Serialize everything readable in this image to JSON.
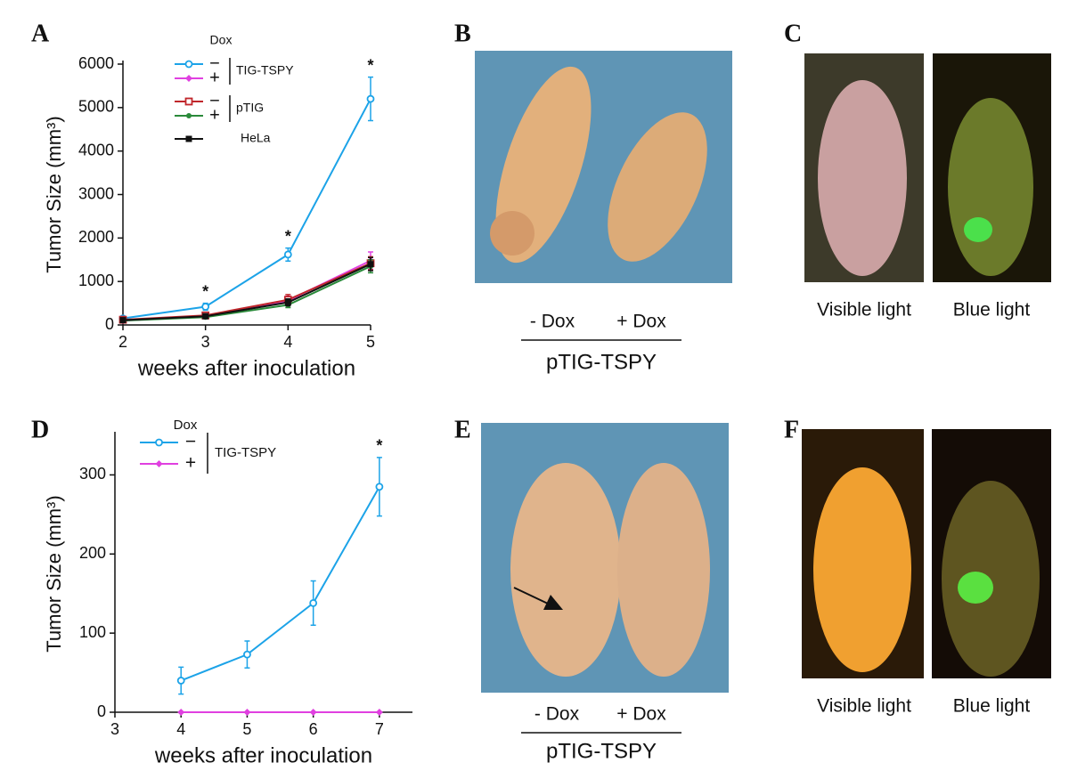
{
  "chart_data": [
    {
      "type": "line",
      "panel": "A",
      "xlabel": "weeks after inoculation",
      "ylabel": "Tumor Size (mm³)",
      "x": [
        2,
        3,
        4,
        5
      ],
      "xlim": [
        2,
        5
      ],
      "xticks": [
        2,
        3,
        4,
        5
      ],
      "ylim": [
        0,
        6000
      ],
      "yticks": [
        0,
        1000,
        2000,
        3000,
        4000,
        5000,
        6000
      ],
      "series": [
        {
          "name": "−",
          "color": "#1ca3e8",
          "marker": "circle-open",
          "values": [
            150,
            420,
            1620,
            5200
          ],
          "errors": [
            30,
            80,
            150,
            500
          ],
          "significance": [
            null,
            "*",
            "*",
            "*"
          ]
        },
        {
          "name": "+",
          "color": "#e040e0",
          "marker": "diamond",
          "values": [
            100,
            200,
            560,
            1480
          ],
          "errors": [
            20,
            40,
            100,
            200
          ]
        },
        {
          "name": "−",
          "color": "#c0262b",
          "marker": "square-open",
          "values": [
            120,
            220,
            580,
            1420
          ],
          "errors": [
            20,
            40,
            120,
            150
          ]
        },
        {
          "name": "+",
          "color": "#2a8a3a",
          "marker": "circle",
          "values": [
            100,
            180,
            460,
            1350
          ],
          "errors": [
            20,
            30,
            60,
            150
          ]
        },
        {
          "name": "HeLa",
          "color": "#111111",
          "marker": "square",
          "values": [
            110,
            200,
            520,
            1400
          ],
          "errors": [
            20,
            30,
            80,
            150
          ]
        }
      ],
      "legend": {
        "title": "Dox",
        "groups": [
          {
            "label": "TIG-TSPY",
            "series": [
              0,
              1
            ]
          },
          {
            "label": "pTIG",
            "series": [
              2,
              3
            ]
          },
          {
            "series": [
              4
            ]
          }
        ]
      }
    },
    {
      "type": "line",
      "panel": "D",
      "xlabel": "weeks after inoculation",
      "ylabel": "Tumor Size (mm³)",
      "x": [
        4,
        5,
        6,
        7
      ],
      "xlim": [
        3,
        7.5
      ],
      "xticks": [
        3,
        4,
        5,
        6,
        7
      ],
      "ylim": [
        0,
        350
      ],
      "yticks": [
        0,
        100,
        200,
        300
      ],
      "series": [
        {
          "name": "−",
          "color": "#1ca3e8",
          "marker": "circle-open",
          "values": [
            40,
            73,
            138,
            285
          ],
          "errors": [
            17,
            17,
            28,
            37
          ],
          "significance": [
            null,
            null,
            null,
            "*"
          ]
        },
        {
          "name": "+",
          "color": "#e040e0",
          "marker": "diamond",
          "values": [
            0,
            0,
            0,
            0
          ],
          "errors": [
            0,
            0,
            0,
            0
          ]
        }
      ],
      "legend": {
        "title": "Dox",
        "groups": [
          {
            "label": "TIG-TSPY",
            "series": [
              0,
              1
            ]
          }
        ]
      }
    }
  ],
  "photo_panels": [
    {
      "panel": "B",
      "captions": [
        "- Dox",
        "+ Dox"
      ],
      "group": "pTIG-TSPY"
    },
    {
      "panel": "C",
      "captions": [
        "Visible light",
        "Blue light"
      ]
    },
    {
      "panel": "E",
      "captions": [
        "- Dox",
        "+ Dox"
      ],
      "group": "pTIG-TSPY"
    },
    {
      "panel": "F",
      "captions": [
        "Visible light",
        "Blue light"
      ]
    }
  ]
}
